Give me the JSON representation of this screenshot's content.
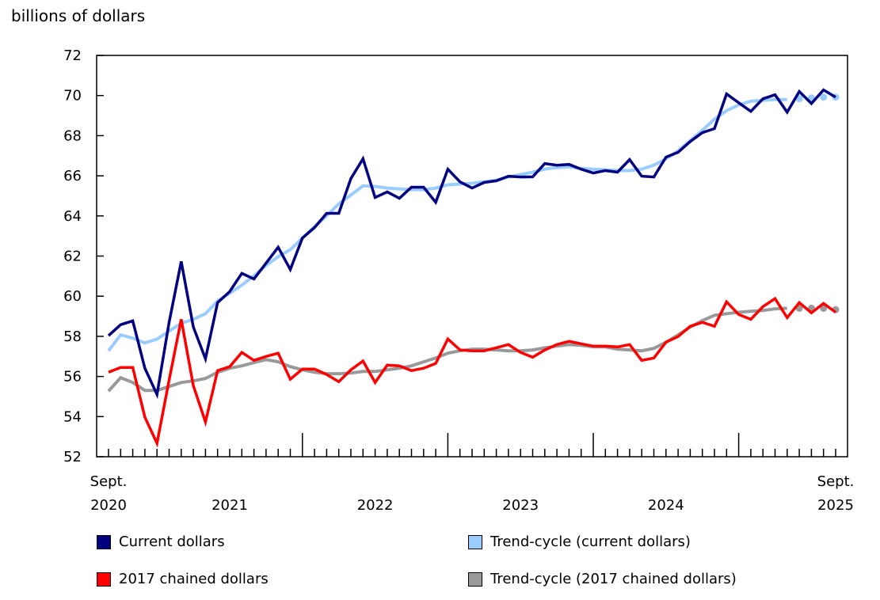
{
  "chart_data": {
    "type": "line",
    "ylabel": "billions of dollars",
    "ylim": [
      52,
      72
    ],
    "yticks": [
      "52",
      "54",
      "56",
      "58",
      "60",
      "62",
      "64",
      "66",
      "68",
      "70",
      "72"
    ],
    "x_start": "Sept. 2020",
    "x_end": "Sept. 2025",
    "xtick_labels": [
      {
        "month_index": 0,
        "line1": "Sept.",
        "line2": "2020"
      },
      {
        "month_index": 10,
        "line1": "",
        "line2": "2021"
      },
      {
        "month_index": 22,
        "line1": "",
        "line2": "2022"
      },
      {
        "month_index": 34,
        "line1": "",
        "line2": "2023"
      },
      {
        "month_index": 46,
        "line1": "",
        "line2": "2024"
      },
      {
        "month_index": 60,
        "line1": "Sept.",
        "line2": "2025"
      }
    ],
    "grid": false,
    "legend_position": "bottom",
    "series": [
      {
        "name": "Current dollars",
        "color": "#000080",
        "values": [
          58.03,
          58.58,
          58.77,
          56.41,
          55.1,
          58.7,
          61.73,
          58.46,
          56.88,
          59.68,
          60.23,
          61.14,
          60.86,
          61.65,
          62.44,
          61.33,
          62.9,
          63.42,
          64.13,
          64.13,
          65.86,
          66.85,
          64.92,
          65.2,
          64.88,
          65.43,
          65.43,
          64.68,
          66.33,
          65.7,
          65.39,
          65.67,
          65.75,
          65.98,
          65.94,
          65.95,
          66.61,
          66.53,
          66.57,
          66.33,
          66.14,
          66.26,
          66.18,
          66.81,
          65.98,
          65.94,
          66.93,
          67.17,
          67.71,
          68.15,
          68.35,
          70.08,
          69.64,
          69.21,
          69.84,
          70.04,
          69.17,
          70.2,
          69.6,
          70.28,
          69.92
        ]
      },
      {
        "name": "2017 chained dollars",
        "color": "#ff0000",
        "values": [
          56.21,
          56.45,
          56.45,
          53.97,
          52.67,
          55.82,
          58.85,
          55.54,
          53.73,
          56.29,
          56.49,
          57.2,
          56.8,
          57.0,
          57.16,
          55.86,
          56.37,
          56.37,
          56.1,
          55.74,
          56.33,
          56.77,
          55.7,
          56.57,
          56.53,
          56.29,
          56.41,
          56.65,
          57.87,
          57.32,
          57.28,
          57.28,
          57.43,
          57.59,
          57.2,
          56.96,
          57.32,
          57.59,
          57.75,
          57.63,
          57.51,
          57.51,
          57.47,
          57.59,
          56.8,
          56.92,
          57.71,
          57.99,
          58.5,
          58.7,
          58.5,
          59.72,
          59.09,
          58.85,
          59.48,
          59.88,
          58.93,
          59.68,
          59.17,
          59.64,
          59.2
        ]
      },
      {
        "name": "Trend-cycle (current dollars)",
        "color": "#99ccff",
        "values": [
          57.28,
          58.07,
          57.91,
          57.67,
          57.86,
          58.26,
          58.65,
          58.85,
          59.13,
          59.76,
          60.15,
          60.55,
          61.02,
          61.53,
          61.97,
          62.32,
          62.9,
          63.46,
          64.01,
          64.6,
          65.04,
          65.5,
          65.47,
          65.39,
          65.35,
          65.31,
          65.31,
          65.39,
          65.55,
          65.59,
          65.63,
          65.7,
          65.78,
          65.94,
          66.06,
          66.18,
          66.33,
          66.41,
          66.45,
          66.37,
          66.33,
          66.3,
          66.26,
          66.26,
          66.33,
          66.53,
          66.85,
          67.24,
          67.75,
          68.27,
          68.82,
          69.25,
          69.53,
          69.72,
          69.76,
          69.8,
          69.8
        ],
        "dot_values": [
          69.84,
          69.88,
          69.92,
          69.92
        ]
      },
      {
        "name": "Trend-cycle (2017 chained dollars)",
        "color": "#999999",
        "values": [
          55.27,
          55.94,
          55.7,
          55.3,
          55.3,
          55.5,
          55.7,
          55.78,
          55.9,
          56.21,
          56.41,
          56.53,
          56.69,
          56.84,
          56.73,
          56.49,
          56.33,
          56.21,
          56.14,
          56.14,
          56.17,
          56.25,
          56.25,
          56.33,
          56.41,
          56.53,
          56.73,
          56.92,
          57.16,
          57.28,
          57.36,
          57.36,
          57.32,
          57.28,
          57.28,
          57.32,
          57.43,
          57.51,
          57.59,
          57.55,
          57.47,
          57.47,
          57.36,
          57.32,
          57.28,
          57.4,
          57.71,
          58.07,
          58.46,
          58.78,
          59.05,
          59.13,
          59.2,
          59.25,
          59.29,
          59.37,
          59.4
        ],
        "dot_values": [
          59.4,
          59.4,
          59.4,
          59.33
        ]
      }
    ]
  }
}
